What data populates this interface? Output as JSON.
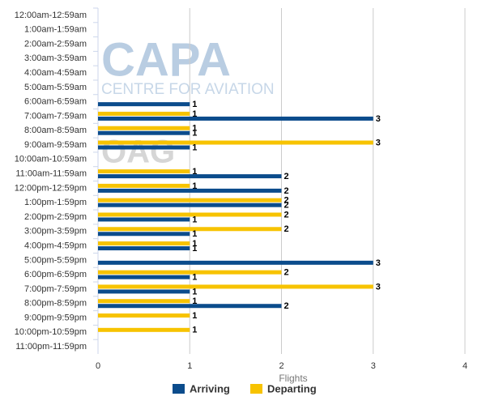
{
  "chart_data": {
    "type": "bar",
    "orientation": "horizontal",
    "watermarks": [
      "CAPA",
      "CENTRE FOR AVIATION",
      "OAG"
    ],
    "xlabel": "Flights",
    "categories": [
      "12:00am-12:59am",
      "1:00am-1:59am",
      "2:00am-2:59am",
      "3:00am-3:59am",
      "4:00am-4:59am",
      "5:00am-5:59am",
      "6:00am-6:59am",
      "7:00am-7:59am",
      "8:00am-8:59am",
      "9:00am-9:59am",
      "10:00am-10:59am",
      "11:00am-11:59am",
      "12:00pm-12:59pm",
      "1:00pm-1:59pm",
      "2:00pm-2:59pm",
      "3:00pm-3:59pm",
      "4:00pm-4:59pm",
      "5:00pm-5:59pm",
      "6:00pm-6:59pm",
      "7:00pm-7:59pm",
      "8:00pm-8:59pm",
      "9:00pm-9:59pm",
      "10:00pm-10:59pm",
      "11:00pm-11:59pm"
    ],
    "series": [
      {
        "name": "Arriving",
        "color": "#0b4c8c",
        "values": [
          null,
          null,
          null,
          null,
          null,
          null,
          1,
          3,
          1,
          1,
          null,
          2,
          2,
          2,
          1,
          1,
          1,
          3,
          1,
          1,
          2,
          null,
          null,
          null
        ]
      },
      {
        "name": "Departing",
        "color": "#f7c300",
        "values": [
          null,
          null,
          null,
          null,
          null,
          null,
          null,
          1,
          1,
          3,
          null,
          1,
          1,
          2,
          2,
          2,
          1,
          null,
          2,
          3,
          1,
          1,
          1,
          null
        ]
      }
    ],
    "xlim": [
      0,
      4
    ],
    "xticks": [
      0,
      1,
      2,
      3,
      4
    ],
    "grid": true,
    "legend": "bottom"
  }
}
